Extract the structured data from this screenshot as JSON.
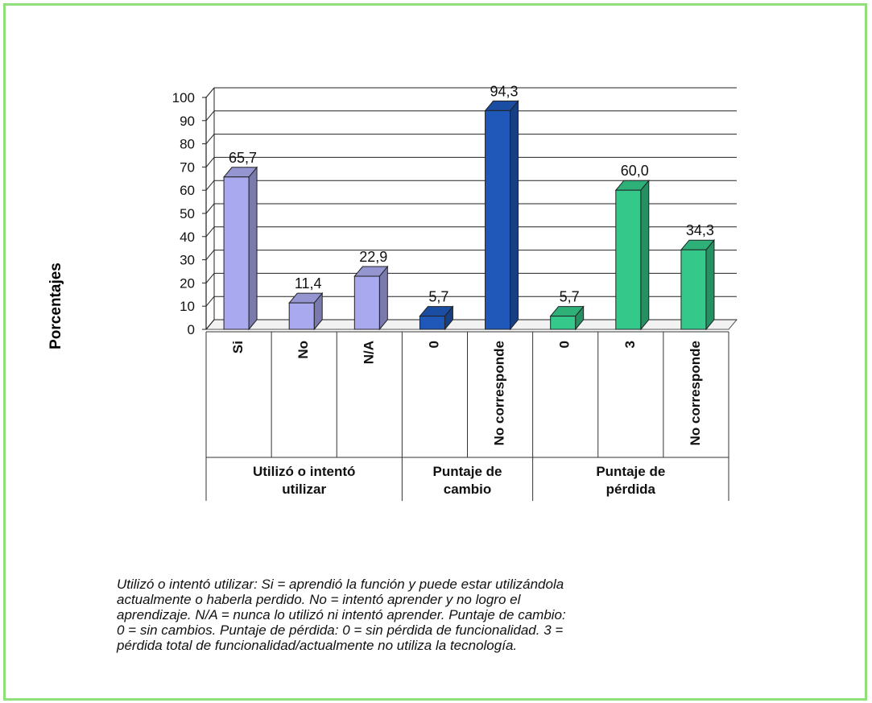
{
  "chart_data": {
    "type": "bar",
    "ylabel": "Porcentajes",
    "ylim": [
      0,
      100
    ],
    "yticks": [
      "0",
      "10",
      "20",
      "30",
      "40",
      "50",
      "60",
      "70",
      "80",
      "90",
      "100"
    ],
    "grid": true,
    "bars": [
      {
        "label": "Si",
        "value": 65.7,
        "value_label": "65,7",
        "group": 0,
        "color": "#a9a9ef"
      },
      {
        "label": "No",
        "value": 11.4,
        "value_label": "11,4",
        "group": 0,
        "color": "#a9a9ef"
      },
      {
        "label": "N/A",
        "value": 22.9,
        "value_label": "22,9",
        "group": 0,
        "color": "#a9a9ef"
      },
      {
        "label": "0",
        "value": 5.7,
        "value_label": "5,7",
        "group": 1,
        "color": "#1f58b8"
      },
      {
        "label": "No corresponde",
        "value": 94.3,
        "value_label": "94,3",
        "group": 1,
        "color": "#1f58b8"
      },
      {
        "label": "0",
        "value": 5.7,
        "value_label": "5,7",
        "group": 2,
        "color": "#34c98a"
      },
      {
        "label": "3",
        "value": 60.0,
        "value_label": "60,0",
        "group": 2,
        "color": "#34c98a"
      },
      {
        "label": "No corresponde",
        "value": 34.3,
        "value_label": "34,3",
        "group": 2,
        "color": "#34c98a"
      }
    ],
    "groups": [
      {
        "lines": [
          "Utilizó o intentó",
          "utilizar"
        ]
      },
      {
        "lines": [
          "Puntaje de",
          "cambio"
        ]
      },
      {
        "lines": [
          "Puntaje de",
          "pérdida"
        ]
      }
    ]
  },
  "caption": [
    "Utilizó o intentó utilizar: Si = aprendió la función y puede estar utilizándola",
    "actualmente o haberla perdido. No = intentó aprender y no logro el",
    "aprendizaje. N/A = nunca lo utilizó ni intentó aprender. Puntaje de cambio:",
    "0 = sin cambios. Puntaje de pérdida: 0 = sin pérdida de funcionalidad.  3 =",
    "pérdida total de funcionalidad/actualmente no utiliza la tecnología."
  ]
}
